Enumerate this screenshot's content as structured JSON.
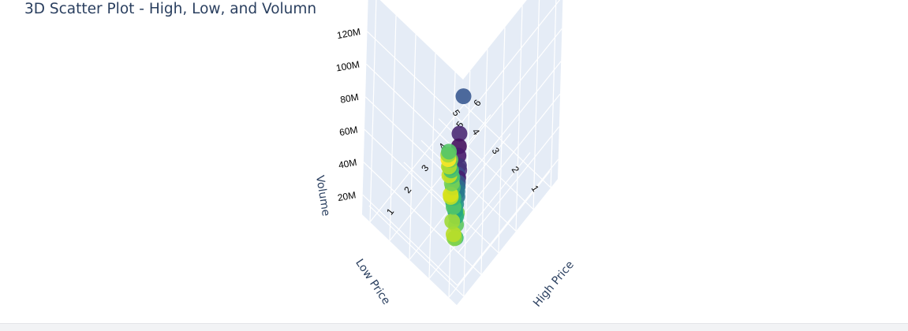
{
  "chart_data": {
    "type": "scatter3d",
    "title": "3D Scatter Plot - High, Low, and Volumn",
    "axes": {
      "x": {
        "label": "High Price",
        "ticks": [
          "1",
          "2",
          "3",
          "4",
          "5",
          "6"
        ],
        "range": [
          0.6,
          6.4
        ]
      },
      "y": {
        "label": "Low Price",
        "ticks": [
          "1",
          "2",
          "3",
          "4",
          "5"
        ],
        "range": [
          0.6,
          5.4
        ]
      },
      "z": {
        "label": "Volume",
        "ticks": [
          "20M",
          "40M",
          "60M",
          "80M",
          "100M",
          "120M"
        ],
        "tick_values": [
          20,
          40,
          60,
          80,
          100,
          120
        ],
        "range": [
          8,
          146
        ],
        "unit": "M"
      }
    },
    "grid": true,
    "colorscale": "Viridis",
    "points": [
      {
        "x": 0.35,
        "y": 0.35,
        "z": 142,
        "color": "#3b5b92"
      },
      {
        "x": 1.2,
        "y": 1.2,
        "z": 98,
        "color": "#4b2a74"
      },
      {
        "x": 1.25,
        "y": 1.25,
        "z": 89,
        "color": "#45115e"
      },
      {
        "x": 1.3,
        "y": 1.3,
        "z": 82,
        "color": "#481a6c"
      },
      {
        "x": 1.25,
        "y": 1.2,
        "z": 75,
        "color": "#5a3e85"
      },
      {
        "x": 1.4,
        "y": 1.35,
        "z": 74,
        "color": "#433278"
      },
      {
        "x": 1.4,
        "y": 1.4,
        "z": 68,
        "color": "#3e4989"
      },
      {
        "x": 1.5,
        "y": 1.45,
        "z": 64,
        "color": "#481e70"
      },
      {
        "x": 1.55,
        "y": 1.5,
        "z": 60,
        "color": "#3a5288"
      },
      {
        "x": 1.6,
        "y": 1.55,
        "z": 56,
        "color": "#2d6e8e"
      },
      {
        "x": 1.65,
        "y": 1.6,
        "z": 52,
        "color": "#297a8e"
      },
      {
        "x": 1.6,
        "y": 1.55,
        "z": 50,
        "color": "#2a788e"
      },
      {
        "x": 1.3,
        "y": 1.3,
        "z": 47,
        "color": "#7ad151"
      },
      {
        "x": 1.9,
        "y": 1.85,
        "z": 38,
        "color": "#2f8f8c"
      },
      {
        "x": 1.45,
        "y": 1.45,
        "z": 36,
        "color": "#5ec962"
      },
      {
        "x": 1.45,
        "y": 1.45,
        "z": 28,
        "color": "#3fbc73"
      },
      {
        "x": 2.1,
        "y": 2.0,
        "z": 26,
        "color": "#28ae80"
      },
      {
        "x": 2.4,
        "y": 2.3,
        "z": 22,
        "color": "#21a585"
      },
      {
        "x": 2.6,
        "y": 2.5,
        "z": 20,
        "color": "#22a884"
      },
      {
        "x": 2.8,
        "y": 2.75,
        "z": 17,
        "color": "#1fa187"
      },
      {
        "x": 1.8,
        "y": 1.8,
        "z": 19,
        "color": "#84d44b"
      },
      {
        "x": 3.0,
        "y": 2.9,
        "z": 15,
        "color": "#3bbb75"
      },
      {
        "x": 3.1,
        "y": 3.0,
        "z": 13,
        "color": "#35b779"
      },
      {
        "x": 2.1,
        "y": 2.1,
        "z": 14,
        "color": "#bade28"
      },
      {
        "x": 3.3,
        "y": 3.2,
        "z": 14,
        "color": "#4ac16d"
      },
      {
        "x": 3.5,
        "y": 3.4,
        "z": 15,
        "color": "#45bf70"
      },
      {
        "x": 2.9,
        "y": 2.8,
        "z": 12,
        "color": "#52c569"
      },
      {
        "x": 3.7,
        "y": 3.6,
        "z": 11,
        "color": "#3dbc74"
      },
      {
        "x": 2.6,
        "y": 2.6,
        "z": 9.5,
        "color": "#a0da39"
      },
      {
        "x": 3.2,
        "y": 3.2,
        "z": 9.5,
        "color": "#c2df23"
      },
      {
        "x": 3.6,
        "y": 3.5,
        "z": 9,
        "color": "#75d054"
      },
      {
        "x": 3.9,
        "y": 3.8,
        "z": 9.5,
        "color": "#46c06f"
      },
      {
        "x": 3.3,
        "y": 3.3,
        "z": 8.5,
        "color": "#d8e219"
      },
      {
        "x": 3.8,
        "y": 3.7,
        "z": 8.5,
        "color": "#4ac16d"
      },
      {
        "x": 4.2,
        "y": 4.1,
        "z": 8.5,
        "color": "#6ccd5a"
      },
      {
        "x": 4.0,
        "y": 4.0,
        "z": 8.2,
        "color": "#b5de2b"
      },
      {
        "x": 4.3,
        "y": 4.3,
        "z": 8,
        "color": "#a0da39"
      },
      {
        "x": 4.0,
        "y": 3.95,
        "z": 8.2,
        "color": "#35b779"
      },
      {
        "x": 4.4,
        "y": 4.35,
        "z": 8,
        "color": "#54c568"
      },
      {
        "x": 3.8,
        "y": 3.8,
        "z": 7.8,
        "color": "#c8e020"
      },
      {
        "x": 4.2,
        "y": 4.2,
        "z": 7.7,
        "color": "#fde725"
      }
    ]
  }
}
